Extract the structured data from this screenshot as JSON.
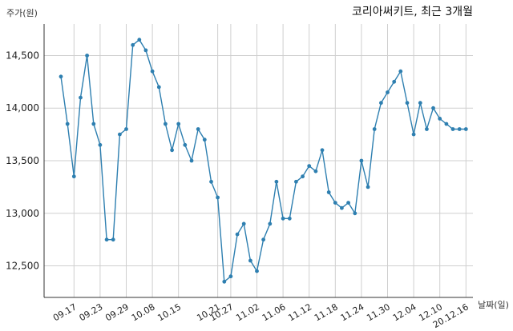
{
  "chart_data": {
    "type": "line",
    "title": "코리아써키트, 최근 3개월",
    "xlabel": "날짜(일)",
    "ylabel": "주가(원)",
    "ylim": [
      12200,
      14800
    ],
    "yticks": [
      12500,
      13000,
      13500,
      14000,
      14500
    ],
    "ytick_labels": [
      "12,500",
      "13,000",
      "13,500",
      "14,000",
      "14,500"
    ],
    "xtick_labels": [
      "09.17",
      "09.23",
      "09.29",
      "10.08",
      "10.15",
      "10.21",
      "10.27",
      "11.02",
      "11.06",
      "11.12",
      "11.18",
      "11.24",
      "11.30",
      "12.04",
      "12.10",
      "20.12.16"
    ],
    "xtick_index": [
      2,
      6,
      10,
      14,
      18,
      24,
      26,
      30,
      34,
      38,
      42,
      46,
      50,
      54,
      58,
      62
    ],
    "grid": true,
    "color": "#2e7fb0",
    "values": [
      14300,
      13850,
      13350,
      14100,
      14500,
      13850,
      13650,
      12750,
      12750,
      13750,
      13800,
      14600,
      14650,
      14550,
      14350,
      14200,
      13850,
      13600,
      13850,
      13650,
      13500,
      13800,
      13700,
      13300,
      13150,
      12350,
      12400,
      12800,
      12900,
      12550,
      12450,
      12750,
      12900,
      13300,
      12950,
      12950,
      13300,
      13350,
      13450,
      13400,
      13600,
      13200,
      13100,
      13050,
      13100,
      13000,
      13500,
      13250,
      13800,
      14050,
      14150,
      14250,
      14350,
      14050,
      13750,
      14050,
      13800,
      14000,
      13900,
      13850,
      13800,
      13800,
      13800
    ]
  }
}
